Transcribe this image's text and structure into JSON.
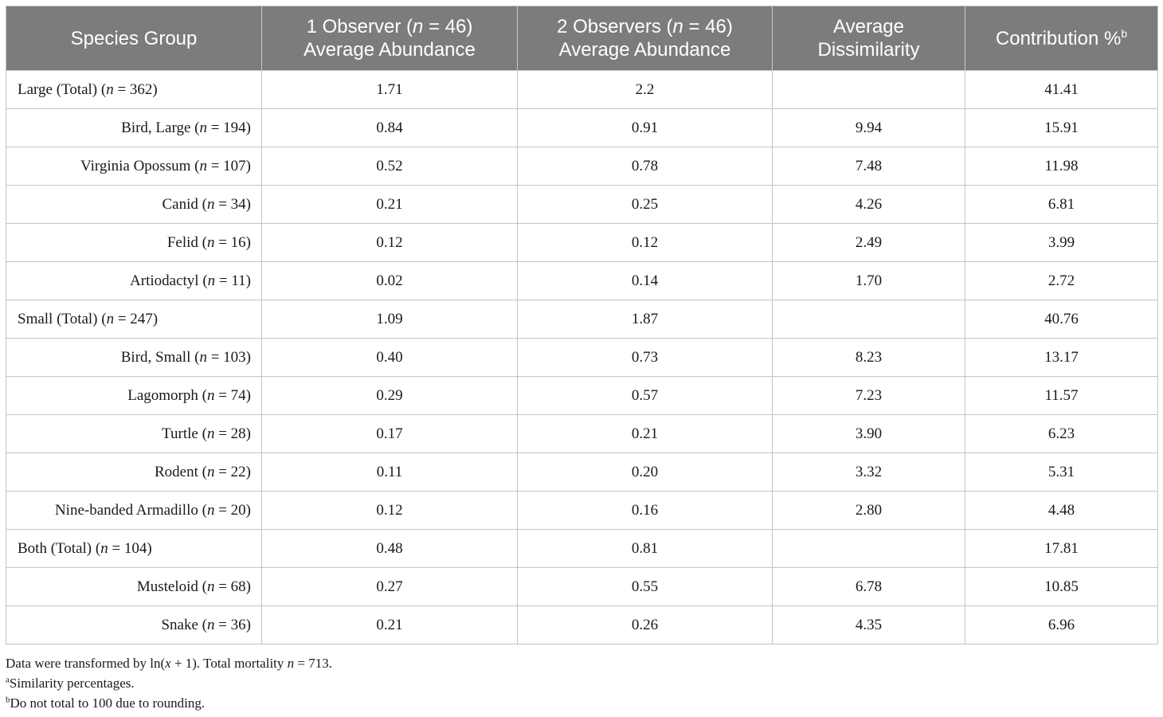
{
  "table": {
    "headers": {
      "species_group": "Species Group",
      "obs1_pre": "1 Observer (",
      "obs1_n": "n",
      "obs1_post": " = 46)",
      "obs1_line2": "Average Abundance",
      "obs2_pre": "2 Observers (",
      "obs2_n": "n",
      "obs2_post": " = 46)",
      "obs2_line2": "Average Abundance",
      "dissim_line1": "Average",
      "dissim_line2": "Dissimilarity",
      "contrib": "Contribution %",
      "contrib_sup": "b"
    },
    "rows": [
      {
        "name": "Large (Total) (",
        "n_label": "n",
        "n_value": " = 362)",
        "obs1": "1.71",
        "obs2": "2.2",
        "dissim": "",
        "contrib": "41.41",
        "total": true
      },
      {
        "name": "Bird, Large (",
        "n_label": "n",
        "n_value": " = 194)",
        "obs1": "0.84",
        "obs2": "0.91",
        "dissim": "9.94",
        "contrib": "15.91",
        "total": false
      },
      {
        "name": "Virginia Opossum (",
        "n_label": "n",
        "n_value": " = 107)",
        "obs1": "0.52",
        "obs2": "0.78",
        "dissim": "7.48",
        "contrib": "11.98",
        "total": false
      },
      {
        "name": "Canid (",
        "n_label": "n",
        "n_value": " = 34)",
        "obs1": "0.21",
        "obs2": "0.25",
        "dissim": "4.26",
        "contrib": "6.81",
        "total": false
      },
      {
        "name": "Felid (",
        "n_label": "n",
        "n_value": " = 16)",
        "obs1": "0.12",
        "obs2": "0.12",
        "dissim": "2.49",
        "contrib": "3.99",
        "total": false
      },
      {
        "name": "Artiodactyl (",
        "n_label": "n",
        "n_value": " = 11)",
        "obs1": "0.02",
        "obs2": "0.14",
        "dissim": "1.70",
        "contrib": "2.72",
        "total": false
      },
      {
        "name": "Small (Total) (",
        "n_label": "n",
        "n_value": " = 247)",
        "obs1": "1.09",
        "obs2": "1.87",
        "dissim": "",
        "contrib": "40.76",
        "total": true
      },
      {
        "name": "Bird, Small (",
        "n_label": "n",
        "n_value": " = 103)",
        "obs1": "0.40",
        "obs2": "0.73",
        "dissim": "8.23",
        "contrib": "13.17",
        "total": false
      },
      {
        "name": "Lagomorph (",
        "n_label": "n",
        "n_value": " = 74)",
        "obs1": "0.29",
        "obs2": "0.57",
        "dissim": "7.23",
        "contrib": "11.57",
        "total": false
      },
      {
        "name": "Turtle (",
        "n_label": "n",
        "n_value": " = 28)",
        "obs1": "0.17",
        "obs2": "0.21",
        "dissim": "3.90",
        "contrib": "6.23",
        "total": false
      },
      {
        "name": "Rodent (",
        "n_label": "n",
        "n_value": " = 22)",
        "obs1": "0.11",
        "obs2": "0.20",
        "dissim": "3.32",
        "contrib": "5.31",
        "total": false
      },
      {
        "name": "Nine-banded Armadillo (",
        "n_label": "n",
        "n_value": " = 20)",
        "obs1": "0.12",
        "obs2": "0.16",
        "dissim": "2.80",
        "contrib": "4.48",
        "total": false
      },
      {
        "name": "Both (Total) (",
        "n_label": "n",
        "n_value": " = 104)",
        "obs1": "0.48",
        "obs2": "0.81",
        "dissim": "",
        "contrib": "17.81",
        "total": true
      },
      {
        "name": "Musteloid (",
        "n_label": "n",
        "n_value": " = 68)",
        "obs1": "0.27",
        "obs2": "0.55",
        "dissim": "6.78",
        "contrib": "10.85",
        "total": false
      },
      {
        "name": "Snake (",
        "n_label": "n",
        "n_value": " = 36)",
        "obs1": "0.21",
        "obs2": "0.26",
        "dissim": "4.35",
        "contrib": "6.96",
        "total": false
      }
    ]
  },
  "footnotes": {
    "line1_a": "Data were transformed by ln(",
    "line1_x": "x",
    "line1_b": " + 1). Total mortality ",
    "line1_n": "n",
    "line1_c": " = 713.",
    "a_sup": "a",
    "a_text": "Similarity percentages.",
    "b_sup": "b",
    "b_text": "Do not total to 100 due to rounding."
  },
  "colors": {
    "header_bg": "#7b7d7b",
    "header_text": "#ffffff",
    "grid": "#c4c4c4"
  }
}
